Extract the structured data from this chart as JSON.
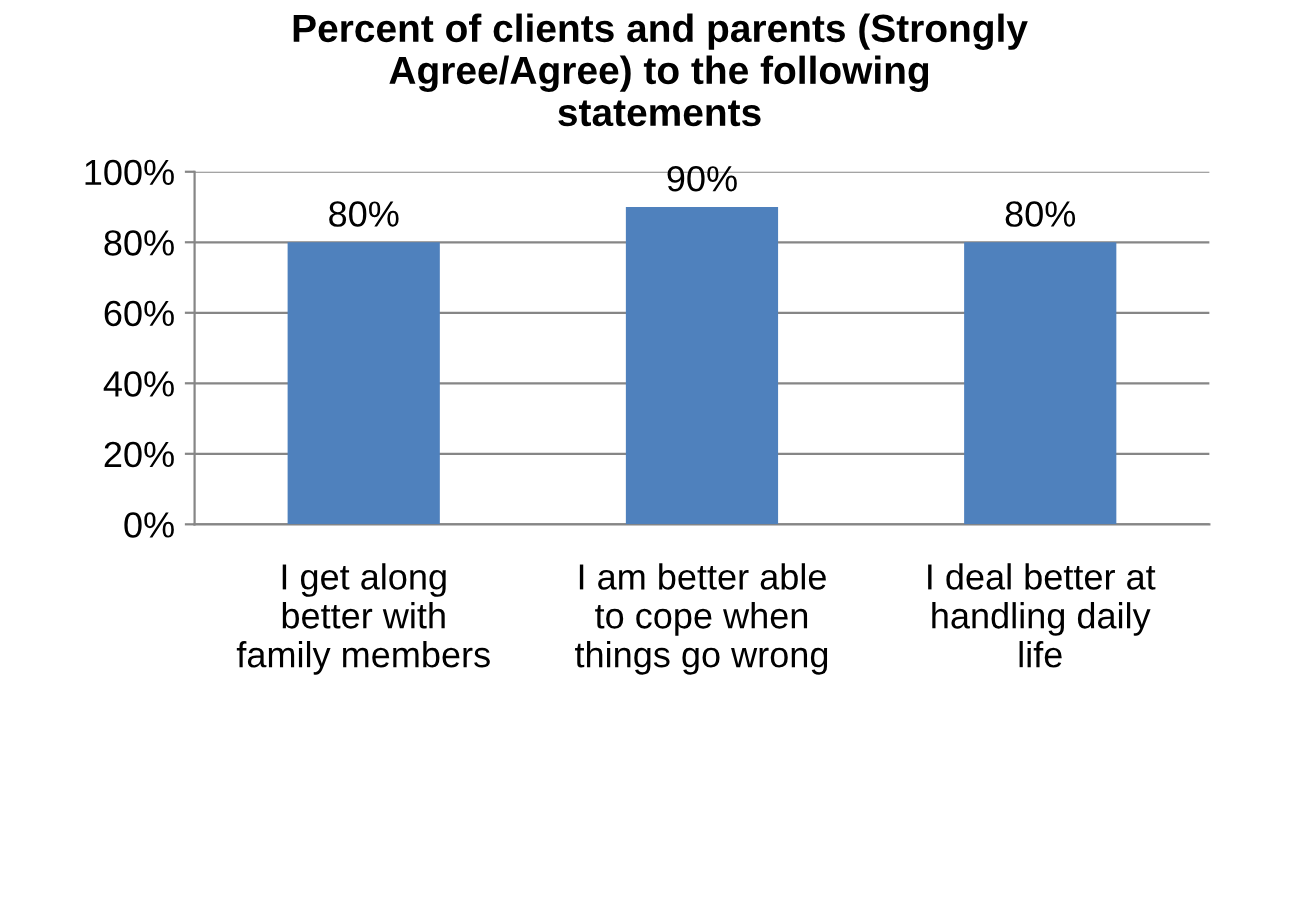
{
  "chart_data": {
    "type": "bar",
    "title": "Percent of clients and parents (Strongly\nAgree/Agree) to the following\nstatements",
    "categories": [
      "I get along\nbetter with\nfamily members",
      "I am better able\nto cope when\nthings go wrong",
      "I deal better at\nhandling daily\nlife"
    ],
    "values": [
      80,
      90,
      80
    ],
    "color": "#4f81bd",
    "value_labels": [
      "80%",
      "90%",
      "80%"
    ],
    "ylim": [
      0,
      100
    ],
    "yticks": [
      {
        "value": 0,
        "label": "0%"
      },
      {
        "value": 20,
        "label": "20%"
      },
      {
        "value": 40,
        "label": "40%"
      },
      {
        "value": 60,
        "label": "60%"
      },
      {
        "value": 80,
        "label": "80%"
      },
      {
        "value": 100,
        "label": "100%"
      }
    ],
    "grid": "y",
    "legend": false
  }
}
